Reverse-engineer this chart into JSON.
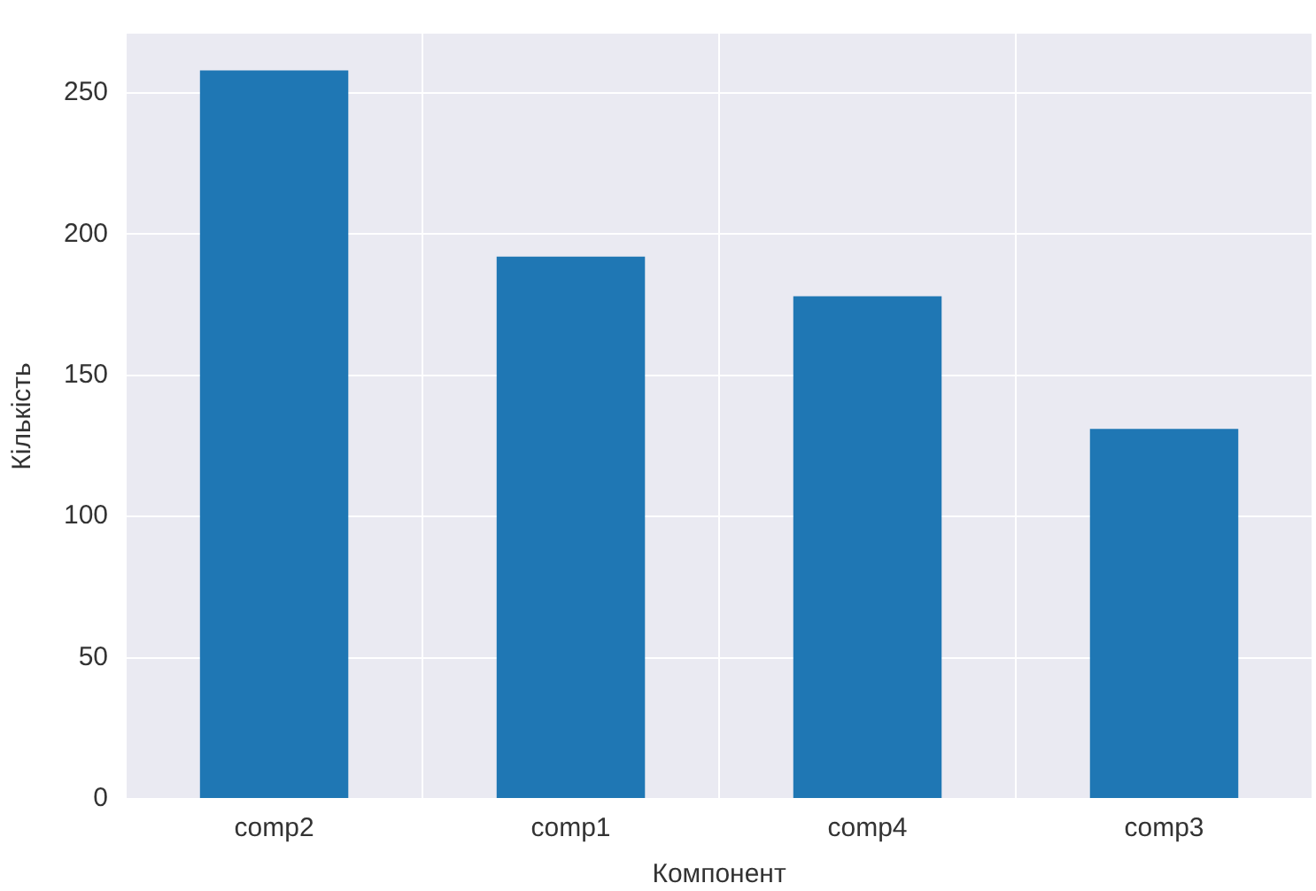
{
  "chart_data": {
    "type": "bar",
    "xlabel": "Компонент",
    "ylabel": "Кількість",
    "categories": [
      "comp2",
      "comp1",
      "comp4",
      "comp3"
    ],
    "values": [
      258,
      192,
      178,
      131
    ],
    "color": "#1f77b4",
    "ylim": [
      0,
      271
    ],
    "yticks": [
      0,
      50,
      100,
      150,
      200,
      250
    ],
    "grid": true
  }
}
